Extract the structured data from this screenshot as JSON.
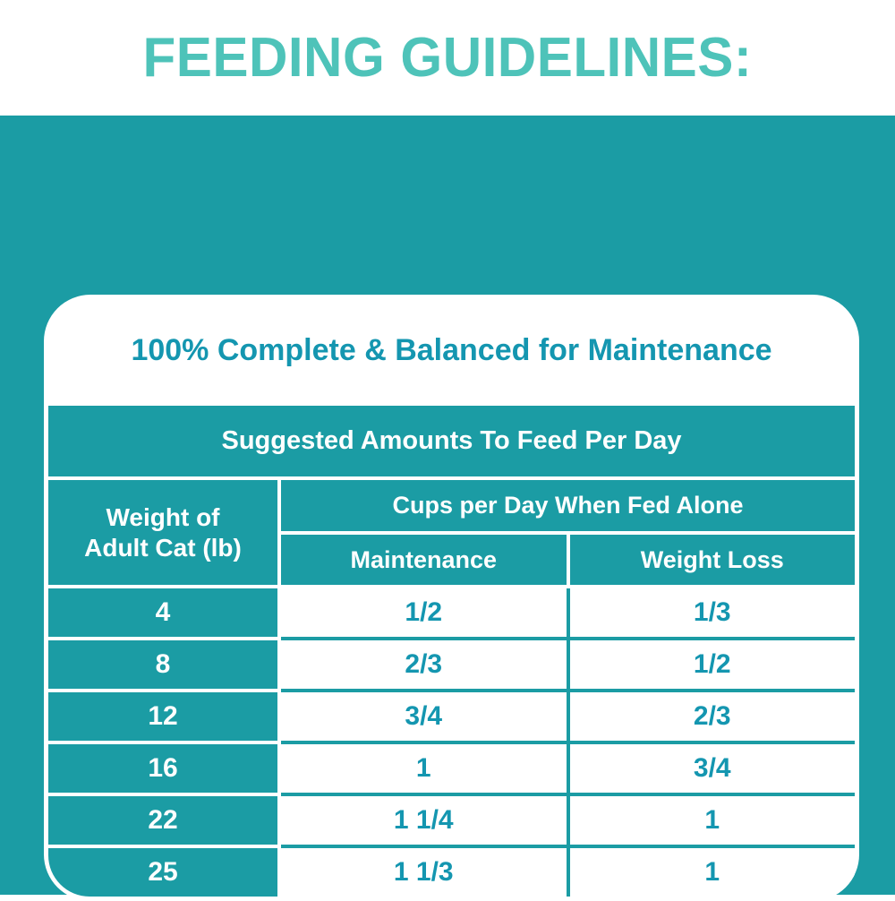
{
  "title": "FEEDING GUIDELINES:",
  "card": {
    "subtitle": "100% Complete & Balanced for Maintenance",
    "banner": "Suggested Amounts To Feed Per Day",
    "weight_col": {
      "line1": "Weight of",
      "line2": "Adult Cat (lb)"
    },
    "cups_header": "Cups per Day When Fed Alone",
    "columns": {
      "maintenance": "Maintenance",
      "weight_loss": "Weight Loss"
    },
    "rows": [
      {
        "weight": "4",
        "maintenance": "1/2",
        "weight_loss": "1/3"
      },
      {
        "weight": "8",
        "maintenance": "2/3",
        "weight_loss": "1/2"
      },
      {
        "weight": "12",
        "maintenance": "3/4",
        "weight_loss": "2/3"
      },
      {
        "weight": "16",
        "maintenance": "1",
        "weight_loss": "3/4"
      },
      {
        "weight": "22",
        "maintenance": "1 1/4",
        "weight_loss": "1"
      },
      {
        "weight": "25",
        "maintenance": "1 1/3",
        "weight_loss": "1"
      }
    ]
  },
  "colors": {
    "teal_background": "#1b9ca4",
    "headline_teal": "#4ec3b9",
    "accent_text_teal": "#1496b0",
    "card_background": "#ffffff"
  }
}
